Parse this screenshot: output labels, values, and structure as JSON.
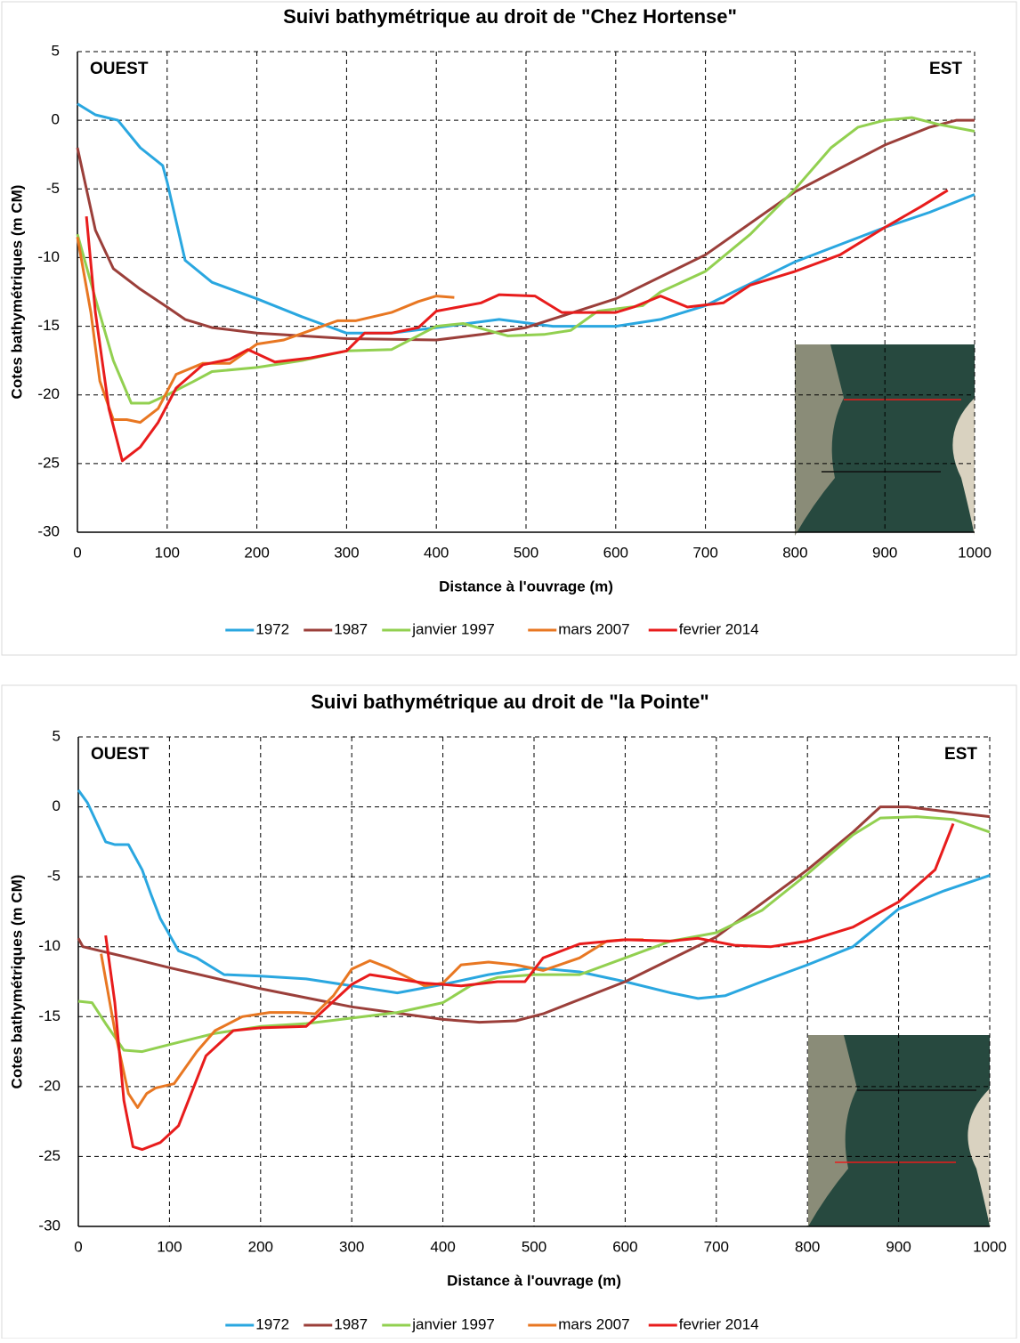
{
  "chart_data": [
    {
      "type": "line",
      "title": "Suivi bathymétrique au droit de \"Chez Hortense\"",
      "x_label": "Distance à l'ouvrage (m)",
      "y_label": "Cotes bathymétriques (m CM)",
      "annotations": [
        "OUEST",
        "EST"
      ],
      "xlim": [
        0,
        1000
      ],
      "ylim": [
        -30,
        5
      ],
      "xticks": [
        0,
        100,
        200,
        300,
        400,
        500,
        600,
        700,
        800,
        900,
        1000
      ],
      "yticks": [
        -30,
        -25,
        -20,
        -15,
        -10,
        -5,
        0,
        5
      ],
      "grid": true,
      "legend": "bottom",
      "series": [
        {
          "name": "1972",
          "color": "#2aa7e0",
          "x": [
            0,
            20,
            45,
            70,
            95,
            100,
            120,
            150,
            200,
            250,
            300,
            350,
            400,
            470,
            530,
            600,
            650,
            700,
            800,
            900,
            950,
            1000
          ],
          "values": [
            1.2,
            0.4,
            0,
            -2,
            -3.3,
            -4.5,
            -10.2,
            -11.8,
            -13,
            -14.3,
            -15.5,
            -15.5,
            -15.1,
            -14.5,
            -15,
            -15,
            -14.5,
            -13.5,
            -10.3,
            -7.8,
            -6.7,
            -5.4
          ]
        },
        {
          "name": "1987",
          "color": "#9b3f3a",
          "x": [
            0,
            20,
            40,
            70,
            100,
            120,
            150,
            200,
            300,
            400,
            450,
            500,
            600,
            700,
            800,
            850,
            900,
            950,
            980,
            1000
          ],
          "values": [
            -2,
            -8,
            -10.8,
            -12.3,
            -13.6,
            -14.5,
            -15.1,
            -15.5,
            -15.9,
            -16,
            -15.6,
            -15.1,
            -13,
            -9.8,
            -5.2,
            -3.5,
            -1.8,
            -0.5,
            0,
            0
          ]
        },
        {
          "name": "janvier 1997",
          "color": "#92d050",
          "x": [
            0,
            20,
            40,
            60,
            80,
            100,
            130,
            150,
            200,
            250,
            300,
            350,
            400,
            430,
            480,
            520,
            550,
            580,
            630,
            650,
            700,
            750,
            800,
            840,
            870,
            900,
            930,
            960,
            1000
          ],
          "values": [
            -8.3,
            -13,
            -17.5,
            -20.6,
            -20.6,
            -20,
            -19,
            -18.3,
            -18,
            -17.5,
            -16.8,
            -16.7,
            -15,
            -14.8,
            -15.7,
            -15.6,
            -15.3,
            -13.9,
            -13.5,
            -12.5,
            -11,
            -8.3,
            -5,
            -2,
            -0.5,
            0,
            0.2,
            -0.3,
            -0.8
          ]
        },
        {
          "name": "mars 2007",
          "color": "#e87722",
          "x": [
            0,
            15,
            25,
            40,
            55,
            70,
            90,
            110,
            140,
            170,
            200,
            230,
            260,
            290,
            310,
            350,
            380,
            400,
            420
          ],
          "values": [
            -8.5,
            -14,
            -19,
            -21.8,
            -21.8,
            -22,
            -21,
            -18.5,
            -17.7,
            -17.7,
            -16.3,
            -16,
            -15.3,
            -14.6,
            -14.6,
            -14,
            -13.2,
            -12.8,
            -12.9
          ]
        },
        {
          "name": "fevrier 2014",
          "color": "#e81c1c",
          "x": [
            10,
            20,
            35,
            50,
            70,
            90,
            110,
            140,
            170,
            190,
            220,
            260,
            300,
            320,
            350,
            380,
            400,
            450,
            470,
            510,
            540,
            600,
            620,
            650,
            680,
            720,
            750,
            800,
            850,
            900,
            940,
            970
          ],
          "values": [
            -7,
            -14,
            -21,
            -24.8,
            -23.8,
            -22,
            -19.5,
            -17.8,
            -17.4,
            -16.7,
            -17.6,
            -17.3,
            -16.8,
            -15.5,
            -15.5,
            -15.1,
            -13.9,
            -13.3,
            -12.7,
            -12.8,
            -14,
            -14,
            -13.6,
            -12.8,
            -13.6,
            -13.3,
            -12,
            -11,
            -9.8,
            -7.8,
            -6.3,
            -5.1
          ]
        }
      ]
    },
    {
      "type": "line",
      "title": "Suivi bathymétrique au droit de \"la Pointe\"",
      "x_label": "Distance à l'ouvrage (m)",
      "y_label": "Cotes bathymétriques (m CM)",
      "annotations": [
        "OUEST",
        "EST"
      ],
      "xlim": [
        0,
        1000
      ],
      "ylim": [
        -30,
        5
      ],
      "xticks": [
        0,
        100,
        200,
        300,
        400,
        500,
        600,
        700,
        800,
        900,
        1000
      ],
      "yticks": [
        -30,
        -25,
        -20,
        -15,
        -10,
        -5,
        0,
        5
      ],
      "grid": true,
      "legend": "bottom",
      "series": [
        {
          "name": "1972",
          "color": "#2aa7e0",
          "x": [
            0,
            10,
            30,
            40,
            55,
            70,
            80,
            90,
            110,
            130,
            160,
            200,
            250,
            300,
            350,
            400,
            450,
            500,
            550,
            600,
            650,
            680,
            710,
            750,
            800,
            850,
            900,
            950,
            1000
          ],
          "values": [
            1.2,
            0.3,
            -2.5,
            -2.7,
            -2.7,
            -4.5,
            -6.3,
            -8,
            -10.3,
            -10.8,
            -12,
            -12.1,
            -12.3,
            -12.8,
            -13.3,
            -12.7,
            -12,
            -11.5,
            -11.8,
            -12.5,
            -13.3,
            -13.7,
            -13.5,
            -12.5,
            -11.3,
            -10,
            -7.3,
            -6,
            -4.9
          ]
        },
        {
          "name": "1987",
          "color": "#9b3f3a",
          "x": [
            0,
            5,
            50,
            100,
            200,
            300,
            400,
            440,
            480,
            510,
            600,
            700,
            800,
            850,
            880,
            910,
            960,
            1000
          ],
          "values": [
            -9.4,
            -10,
            -10.7,
            -11.5,
            -13,
            -14.3,
            -15.2,
            -15.4,
            -15.3,
            -14.8,
            -12.5,
            -9.3,
            -4.5,
            -1.8,
            0,
            0,
            -0.4,
            -0.7
          ]
        },
        {
          "name": "janvier 1997",
          "color": "#92d050",
          "x": [
            0,
            15,
            30,
            50,
            70,
            100,
            150,
            200,
            250,
            300,
            350,
            400,
            430,
            460,
            500,
            550,
            600,
            650,
            700,
            750,
            800,
            850,
            880,
            920,
            960,
            1000
          ],
          "values": [
            -13.9,
            -14,
            -15.5,
            -17.4,
            -17.5,
            -17,
            -16.2,
            -15.7,
            -15.5,
            -15.1,
            -14.7,
            -14,
            -12.8,
            -12.2,
            -12,
            -12,
            -10.8,
            -9.6,
            -9,
            -7.4,
            -4.8,
            -2,
            -0.8,
            -0.7,
            -0.9,
            -1.8
          ]
        },
        {
          "name": "mars 2007",
          "color": "#e87722",
          "x": [
            25,
            40,
            55,
            65,
            75,
            85,
            105,
            130,
            150,
            180,
            210,
            240,
            260,
            280,
            300,
            320,
            340,
            380,
            400,
            420,
            450,
            480,
            510,
            550,
            580,
            600,
            620
          ],
          "values": [
            -10.5,
            -16,
            -20.5,
            -21.5,
            -20.5,
            -20.1,
            -19.8,
            -17.5,
            -16,
            -15,
            -14.7,
            -14.7,
            -14.8,
            -13.5,
            -11.6,
            -11,
            -11.5,
            -12.8,
            -12.6,
            -11.3,
            -11.1,
            -11.3,
            -11.7,
            -10.8,
            -9.6,
            -9.5,
            -9.5
          ]
        },
        {
          "name": "fevrier 2014",
          "color": "#e81c1c",
          "x": [
            30,
            40,
            50,
            60,
            70,
            90,
            110,
            140,
            170,
            200,
            250,
            270,
            300,
            320,
            350,
            380,
            420,
            460,
            490,
            510,
            550,
            600,
            650,
            680,
            720,
            760,
            800,
            850,
            900,
            940,
            960
          ],
          "values": [
            -9.2,
            -14,
            -21,
            -24.3,
            -24.5,
            -24,
            -22.8,
            -17.8,
            -16,
            -15.8,
            -15.7,
            -14.5,
            -12.7,
            -12,
            -12.3,
            -12.6,
            -12.8,
            -12.5,
            -12.5,
            -10.8,
            -9.8,
            -9.5,
            -9.6,
            -9.4,
            -9.9,
            -10,
            -9.6,
            -8.6,
            -6.8,
            -4.5,
            -1.2
          ]
        }
      ]
    }
  ]
}
